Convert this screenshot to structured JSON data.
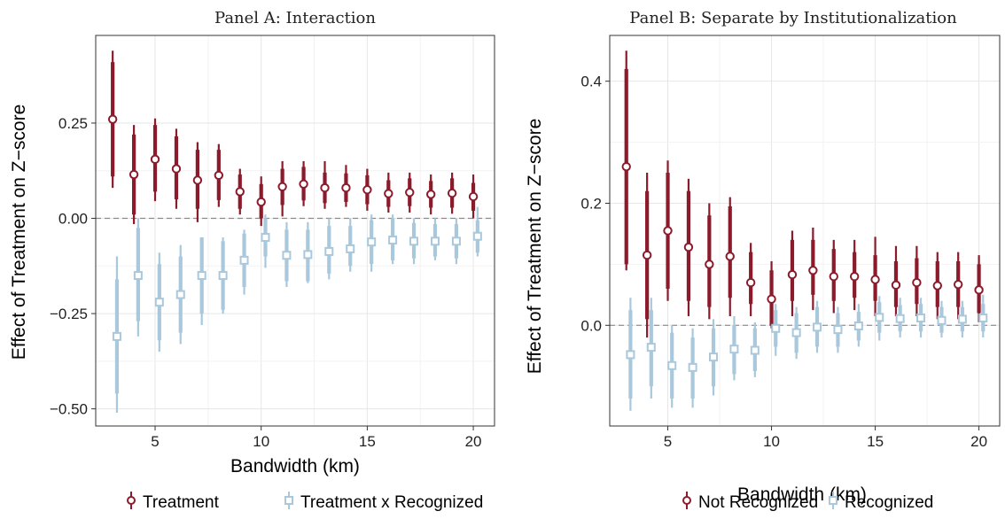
{
  "chart_data": [
    {
      "type": "scatter",
      "title": "Panel A: Interaction",
      "xlabel": "Bandwidth (km)",
      "ylabel": "Effect of Treatment on Z−score",
      "xlim": [
        2.2,
        21.0
      ],
      "ylim": [
        -0.545,
        0.48
      ],
      "xticks": [
        5,
        10,
        15,
        20
      ],
      "xtick_labels": [
        "5",
        "10",
        "15",
        "20"
      ],
      "yticks": [
        -0.5,
        -0.25,
        0.0,
        0.25
      ],
      "ytick_labels": [
        "−0.50",
        "−0.25",
        "0.00",
        "0.25"
      ],
      "grid": true,
      "reference_line": 0,
      "legend_position": "bottom",
      "series": [
        {
          "name": "Treatment",
          "color": "#8b1a2b",
          "marker": "circle",
          "x": [
            3,
            4,
            5,
            6,
            7,
            8,
            9,
            10,
            11,
            12,
            13,
            14,
            15,
            16,
            17,
            18,
            19,
            20
          ],
          "estimate": [
            0.26,
            0.115,
            0.155,
            0.13,
            0.1,
            0.113,
            0.07,
            0.043,
            0.083,
            0.09,
            0.08,
            0.08,
            0.075,
            0.065,
            0.068,
            0.063,
            0.066,
            0.057
          ],
          "ci90_low": [
            0.11,
            0.01,
            0.07,
            0.05,
            0.025,
            0.048,
            0.025,
            0.0,
            0.035,
            0.047,
            0.04,
            0.043,
            0.037,
            0.03,
            0.032,
            0.028,
            0.028,
            0.02
          ],
          "ci90_high": [
            0.41,
            0.22,
            0.245,
            0.215,
            0.18,
            0.18,
            0.115,
            0.09,
            0.13,
            0.135,
            0.12,
            0.118,
            0.113,
            0.1,
            0.105,
            0.098,
            0.105,
            0.093
          ],
          "ci95_low": [
            0.08,
            -0.015,
            0.045,
            0.025,
            -0.01,
            0.03,
            0.01,
            -0.02,
            0.005,
            0.032,
            0.025,
            0.03,
            0.02,
            0.015,
            0.015,
            0.01,
            0.012,
            0.0
          ],
          "ci95_high": [
            0.44,
            0.245,
            0.262,
            0.235,
            0.2,
            0.195,
            0.13,
            0.11,
            0.15,
            0.15,
            0.15,
            0.14,
            0.13,
            0.12,
            0.12,
            0.115,
            0.12,
            0.115
          ]
        },
        {
          "name": "Treatment x Recognized",
          "color": "#a9c8dc",
          "marker": "square",
          "x": [
            3.2,
            4.2,
            5.2,
            6.2,
            7.2,
            8.2,
            9.2,
            10.2,
            11.2,
            12.2,
            13.2,
            14.2,
            15.2,
            16.2,
            17.2,
            18.2,
            19.2,
            20.2
          ],
          "estimate": [
            -0.31,
            -0.15,
            -0.22,
            -0.2,
            -0.15,
            -0.15,
            -0.11,
            -0.05,
            -0.097,
            -0.095,
            -0.087,
            -0.08,
            -0.062,
            -0.057,
            -0.06,
            -0.06,
            -0.06,
            -0.047
          ],
          "ci90_low": [
            -0.46,
            -0.27,
            -0.32,
            -0.3,
            -0.25,
            -0.24,
            -0.18,
            -0.1,
            -0.165,
            -0.165,
            -0.145,
            -0.125,
            -0.12,
            -0.11,
            -0.105,
            -0.1,
            -0.105,
            -0.09
          ],
          "ci90_high": [
            -0.16,
            -0.025,
            -0.12,
            -0.1,
            -0.05,
            -0.06,
            -0.04,
            0.0,
            -0.03,
            -0.03,
            -0.02,
            -0.02,
            -0.005,
            0.0,
            -0.012,
            -0.015,
            -0.015,
            -0.005
          ],
          "ci95_low": [
            -0.51,
            -0.31,
            -0.35,
            -0.33,
            -0.28,
            -0.25,
            -0.2,
            -0.13,
            -0.18,
            -0.17,
            -0.16,
            -0.14,
            -0.14,
            -0.12,
            -0.12,
            -0.11,
            -0.12,
            -0.1
          ],
          "ci95_high": [
            -0.1,
            0.0,
            -0.09,
            -0.07,
            -0.07,
            -0.05,
            -0.03,
            0.01,
            -0.01,
            -0.01,
            0.0,
            0.0,
            0.01,
            0.01,
            0.0,
            0.0,
            0.0,
            0.03
          ]
        }
      ]
    },
    {
      "type": "scatter",
      "title": "Panel B: Separate by Institutionalization",
      "xlabel": "Bandwidth (km)",
      "ylabel": "Effect of Treatment on Z−score",
      "xlim": [
        2.2,
        21.0
      ],
      "ylim": [
        -0.165,
        0.475
      ],
      "xticks": [
        5,
        10,
        15,
        20
      ],
      "xtick_labels": [
        "5",
        "10",
        "15",
        "20"
      ],
      "yticks": [
        0.0,
        0.2,
        0.4
      ],
      "ytick_labels": [
        "0.0",
        "0.2",
        "0.4"
      ],
      "grid": true,
      "reference_line": 0,
      "legend_position": "bottom",
      "series": [
        {
          "name": "Not Recognized",
          "color": "#8b1a2b",
          "marker": "circle",
          "x": [
            3,
            4,
            5,
            6,
            7,
            8,
            9,
            10,
            11,
            12,
            13,
            14,
            15,
            16,
            17,
            18,
            19,
            20
          ],
          "estimate": [
            0.26,
            0.115,
            0.155,
            0.128,
            0.1,
            0.113,
            0.07,
            0.043,
            0.083,
            0.09,
            0.08,
            0.08,
            0.075,
            0.066,
            0.07,
            0.065,
            0.067,
            0.058
          ],
          "ci90_low": [
            0.1,
            0.01,
            0.06,
            0.04,
            0.03,
            0.045,
            0.035,
            0.0,
            0.04,
            0.05,
            0.04,
            0.045,
            0.04,
            0.03,
            0.035,
            0.03,
            0.03,
            0.02
          ],
          "ci90_high": [
            0.42,
            0.22,
            0.25,
            0.22,
            0.18,
            0.195,
            0.12,
            0.09,
            0.14,
            0.14,
            0.125,
            0.12,
            0.115,
            0.105,
            0.11,
            0.105,
            0.105,
            0.1
          ],
          "ci95_low": [
            0.09,
            -0.02,
            0.04,
            0.015,
            0.01,
            0.015,
            0.015,
            -0.005,
            0.015,
            0.025,
            0.02,
            0.025,
            0.015,
            0.015,
            0.015,
            0.01,
            0.01,
            0.005
          ],
          "ci95_high": [
            0.45,
            0.25,
            0.27,
            0.24,
            0.2,
            0.21,
            0.135,
            0.105,
            0.155,
            0.16,
            0.14,
            0.14,
            0.145,
            0.13,
            0.13,
            0.12,
            0.12,
            0.115
          ]
        },
        {
          "name": "Recognized",
          "color": "#a9c8dc",
          "marker": "square",
          "x": [
            3.2,
            4.2,
            5.2,
            6.2,
            7.2,
            8.2,
            9.2,
            10.2,
            11.2,
            12.2,
            13.2,
            14.2,
            15.2,
            16.2,
            17.2,
            18.2,
            19.2,
            20.2
          ],
          "estimate": [
            -0.048,
            -0.036,
            -0.066,
            -0.069,
            -0.052,
            -0.039,
            -0.041,
            -0.005,
            -0.012,
            -0.003,
            -0.007,
            -0.001,
            0.013,
            0.011,
            0.012,
            0.008,
            0.01,
            0.012
          ],
          "ci90_low": [
            -0.12,
            -0.1,
            -0.12,
            -0.12,
            -0.1,
            -0.08,
            -0.075,
            -0.035,
            -0.045,
            -0.035,
            -0.035,
            -0.025,
            -0.012,
            -0.01,
            -0.01,
            -0.012,
            -0.01,
            -0.01
          ],
          "ci90_high": [
            0.025,
            0.025,
            -0.012,
            -0.02,
            -0.005,
            0.0,
            -0.005,
            0.025,
            0.02,
            0.03,
            0.02,
            0.022,
            0.038,
            0.033,
            0.035,
            0.03,
            0.03,
            0.035
          ],
          "ci95_low": [
            -0.14,
            -0.12,
            -0.135,
            -0.135,
            -0.115,
            -0.09,
            -0.085,
            -0.05,
            -0.055,
            -0.045,
            -0.045,
            -0.035,
            -0.025,
            -0.02,
            -0.02,
            -0.02,
            -0.02,
            -0.02
          ],
          "ci95_high": [
            0.045,
            0.045,
            0.0,
            -0.005,
            0.01,
            0.015,
            0.005,
            0.035,
            0.03,
            0.04,
            0.03,
            0.035,
            0.048,
            0.045,
            0.045,
            0.04,
            0.04,
            0.05
          ]
        }
      ]
    }
  ]
}
